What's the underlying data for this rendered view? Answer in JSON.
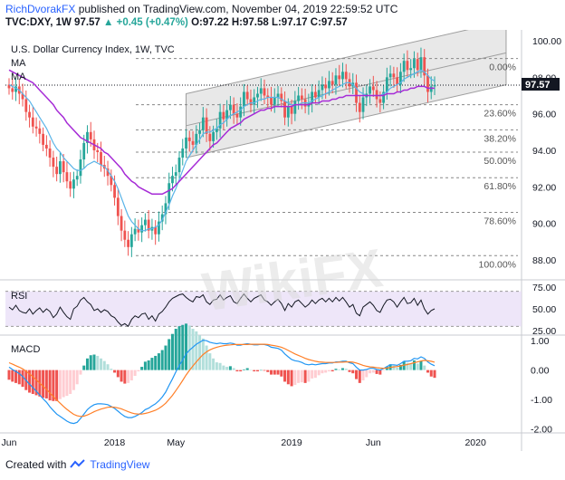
{
  "header": {
    "author": "RichDvorakFX",
    "published": "published on TradingView.com, November 04, 2019 22:59:52 UTC",
    "symbol_line": {
      "symbol": "TVC:DXY, 1W",
      "price": "97.57",
      "change": "▲ +0.45 (+0.47%)",
      "ohlc": "O:97.22 H:97.58 L:97.17 C:97.57"
    }
  },
  "panes": {
    "main_title": "U.S. Dollar Currency Index, 1W, TVC",
    "ma_label_1": "MA",
    "ma_label_2": "MA",
    "rsi_label": "RSI",
    "macd_label": "MACD",
    "price_badge": "97.57",
    "watermark": "WikiFX"
  },
  "footer": {
    "created_with": "Created with",
    "brand": "TradingView"
  },
  "colors": {
    "up": "#26a69a",
    "down": "#ef5350",
    "ma_fast": "#5ab4e8",
    "ma_slow": "#a62bd6",
    "rsi": "#131722",
    "rsi_band": "#e7dcf6",
    "macd": "#2196f3",
    "signal": "#ff7f27"
  },
  "chart_data": [
    {
      "type": "candlestick",
      "title": "U.S. Dollar Currency Index, 1W, TVC",
      "x_ticks": [
        "Jun",
        "2018",
        "May",
        "2019",
        "Jun",
        "2020"
      ],
      "x_tick_index": [
        0,
        31,
        49,
        83,
        107,
        137
      ],
      "y_ticks": [
        88.0,
        90.0,
        92.0,
        94.0,
        96.0,
        98.0,
        100.0
      ],
      "ylim": [
        87.4,
        100.2
      ],
      "last_price": 97.57,
      "fib_levels": [
        {
          "label": "0.00%",
          "value": 99.03
        },
        {
          "label": "23.60%",
          "value": 96.5
        },
        {
          "label": "38.20%",
          "value": 95.12
        },
        {
          "label": "50.00%",
          "value": 93.9
        },
        {
          "label": "61.80%",
          "value": 92.5
        },
        {
          "label": "78.60%",
          "value": 90.6
        },
        {
          "label": "100.00%",
          "value": 88.23
        }
      ],
      "closes": [
        97.4,
        97.2,
        97.5,
        97.1,
        96.8,
        96.1,
        95.8,
        95.3,
        95.2,
        94.9,
        94.3,
        94.1,
        93.6,
        93.1,
        92.7,
        93.4,
        92.8,
        92.3,
        91.9,
        92.4,
        92.6,
        93.5,
        94.4,
        95.0,
        94.6,
        94.0,
        93.9,
        93.2,
        93.0,
        92.6,
        92.1,
        91.4,
        90.4,
        89.6,
        89.1,
        88.7,
        89.4,
        89.7,
        89.5,
        89.9,
        90.2,
        89.6,
        89.8,
        89.4,
        90.1,
        90.5,
        91.1,
        92.2,
        92.6,
        92.8,
        93.6,
        94.1,
        94.7,
        94.5,
        94.3,
        94.9,
        95.1,
        95.8,
        94.9,
        94.5,
        95.0,
        95.2,
        96.1,
        95.7,
        96.2,
        96.5,
        96.0,
        95.8,
        96.4,
        97.2,
        96.8,
        96.5,
        96.9,
        97.1,
        97.4,
        97.0,
        96.9,
        96.5,
        96.9,
        97.1,
        96.7,
        95.8,
        96.4,
        96.0,
        96.7,
        97.0,
        96.8,
        96.4,
        96.6,
        97.2,
        96.9,
        97.3,
        97.6,
        97.4,
        97.8,
        97.6,
        98.1,
        97.9,
        98.3,
        97.9,
        97.5,
        97.7,
        96.6,
        96.1,
        96.9,
        97.1,
        97.5,
        97.3,
        96.8,
        96.6,
        97.2,
        98.0,
        98.2,
        98.0,
        97.6,
        98.3,
        98.9,
        98.4,
        98.5,
        99.0,
        98.4,
        99.1,
        98.1,
        97.2,
        97.5,
        97.57
      ],
      "ma_fast": [
        97.6,
        97.5,
        97.4,
        97.3,
        97.1,
        96.9,
        96.7,
        96.4,
        96.1,
        95.8,
        95.5,
        95.2,
        94.8,
        94.4,
        94.1,
        93.9,
        93.6,
        93.4,
        93.2,
        93.0,
        92.9,
        92.9,
        93.0,
        93.2,
        93.3,
        93.4,
        93.3,
        93.2,
        93.1,
        92.9,
        92.6,
        92.3,
        91.9,
        91.4,
        90.9,
        90.4,
        90.1,
        89.9,
        89.7,
        89.6,
        89.6,
        89.7,
        89.7,
        89.8,
        89.9,
        90.2,
        90.6,
        91.0,
        91.5,
        91.9,
        92.4,
        92.9,
        93.4,
        93.7,
        94.0,
        94.3,
        94.6,
        94.9,
        95.0,
        95.0,
        95.1,
        95.2,
        95.4,
        95.5,
        95.7,
        95.9,
        96.0,
        96.1,
        96.2,
        96.4,
        96.5,
        96.6,
        96.6,
        96.7,
        96.8,
        96.8,
        96.9,
        96.9,
        96.9,
        96.9,
        96.8,
        96.7,
        96.6,
        96.5,
        96.5,
        96.5,
        96.6,
        96.6,
        96.6,
        96.7,
        96.8,
        96.9,
        97.0,
        97.1,
        97.2,
        97.3,
        97.4,
        97.5,
        97.6,
        97.7,
        97.7,
        97.6,
        97.4,
        97.2,
        97.1,
        97.0,
        97.0,
        97.0,
        97.0,
        97.0,
        97.1,
        97.2,
        97.4,
        97.5,
        97.6,
        97.7,
        97.9,
        98.0,
        98.1,
        98.2,
        98.3,
        98.4,
        98.3,
        98.1,
        97.9,
        97.8
      ],
      "ma_slow": [
        98.4,
        98.3,
        98.2,
        98.1,
        98.0,
        97.9,
        97.8,
        97.7,
        97.5,
        97.3,
        97.1,
        96.9,
        96.7,
        96.5,
        96.2,
        96.0,
        95.8,
        95.5,
        95.3,
        95.1,
        94.9,
        94.7,
        94.6,
        94.5,
        94.4,
        94.3,
        94.2,
        94.1,
        93.9,
        93.8,
        93.6,
        93.4,
        93.2,
        93.0,
        92.7,
        92.5,
        92.3,
        92.2,
        92.0,
        91.9,
        91.8,
        91.7,
        91.6,
        91.6,
        91.6,
        91.6,
        91.7,
        91.8,
        91.9,
        92.1,
        92.3,
        92.5,
        92.7,
        92.9,
        93.1,
        93.3,
        93.5,
        93.7,
        93.9,
        94.1,
        94.3,
        94.4,
        94.6,
        94.8,
        95.0,
        95.2,
        95.3,
        95.4,
        95.5,
        95.7,
        95.8,
        95.9,
        96.0,
        96.1,
        96.2,
        96.2,
        96.3,
        96.3,
        96.4,
        96.4,
        96.4,
        96.4,
        96.4,
        96.4,
        96.5,
        96.5,
        96.5,
        96.5,
        96.5,
        96.6,
        96.6,
        96.6,
        96.7,
        96.7,
        96.7,
        96.8,
        96.8,
        96.9,
        96.9,
        97.0,
        97.0,
        97.0,
        97.0,
        97.0,
        97.0,
        97.0,
        97.0,
        97.0,
        97.0,
        97.0,
        97.0,
        97.1,
        97.1,
        97.1,
        97.2,
        97.2,
        97.3,
        97.3,
        97.4,
        97.4,
        97.5,
        97.5,
        97.5,
        97.4,
        97.4,
        97.4
      ]
    },
    {
      "type": "line",
      "title": "RSI",
      "y_ticks": [
        25.0,
        50.0,
        75.0
      ],
      "ylim": [
        20,
        80
      ],
      "band": [
        30,
        70
      ],
      "values": [
        52,
        49,
        54,
        48,
        46,
        45,
        50,
        44,
        48,
        51,
        46,
        50,
        47,
        40,
        44,
        52,
        46,
        41,
        38,
        50,
        53,
        60,
        63,
        58,
        55,
        48,
        50,
        46,
        49,
        47,
        42,
        40,
        35,
        31,
        33,
        30,
        38,
        42,
        40,
        44,
        45,
        38,
        42,
        36,
        44,
        47,
        52,
        58,
        62,
        64,
        66,
        67,
        63,
        60,
        58,
        64,
        63,
        66,
        58,
        55,
        60,
        61,
        66,
        60,
        63,
        65,
        58,
        56,
        62,
        67,
        62,
        58,
        62,
        64,
        66,
        60,
        58,
        54,
        58,
        61,
        56,
        48,
        56,
        52,
        58,
        60,
        56,
        52,
        55,
        60,
        56,
        60,
        62,
        58,
        62,
        58,
        63,
        59,
        63,
        58,
        52,
        55,
        45,
        42,
        52,
        55,
        58,
        54,
        48,
        46,
        54,
        60,
        61,
        58,
        52,
        58,
        63,
        56,
        57,
        62,
        54,
        60,
        50,
        44,
        48,
        50
      ]
    },
    {
      "type": "bar+line",
      "title": "MACD",
      "y_ticks": [
        -2.0,
        -1.0,
        0.0,
        1.0
      ],
      "ylim": [
        -2.05,
        1.1
      ],
      "macd": [
        0.1,
        0.02,
        -0.05,
        -0.12,
        -0.22,
        -0.35,
        -0.48,
        -0.6,
        -0.72,
        -0.85,
        -0.98,
        -1.1,
        -1.25,
        -1.38,
        -1.5,
        -1.58,
        -1.66,
        -1.74,
        -1.8,
        -1.82,
        -1.78,
        -1.65,
        -1.5,
        -1.35,
        -1.25,
        -1.18,
        -1.15,
        -1.15,
        -1.16,
        -1.18,
        -1.24,
        -1.31,
        -1.4,
        -1.5,
        -1.58,
        -1.62,
        -1.62,
        -1.58,
        -1.52,
        -1.45,
        -1.35,
        -1.3,
        -1.22,
        -1.15,
        -1.05,
        -0.92,
        -0.75,
        -0.52,
        -0.3,
        -0.06,
        0.15,
        0.35,
        0.55,
        0.68,
        0.78,
        0.88,
        0.95,
        1.02,
        1.0,
        0.95,
        0.92,
        0.9,
        0.92,
        0.9,
        0.9,
        0.92,
        0.9,
        0.85,
        0.85,
        0.88,
        0.9,
        0.88,
        0.86,
        0.86,
        0.88,
        0.87,
        0.84,
        0.78,
        0.76,
        0.74,
        0.68,
        0.55,
        0.45,
        0.36,
        0.32,
        0.3,
        0.26,
        0.2,
        0.18,
        0.2,
        0.18,
        0.2,
        0.22,
        0.22,
        0.24,
        0.24,
        0.28,
        0.28,
        0.3,
        0.3,
        0.25,
        0.22,
        0.1,
        0.0,
        0.0,
        0.02,
        0.06,
        0.06,
        0.02,
        0.0,
        0.05,
        0.12,
        0.18,
        0.18,
        0.16,
        0.22,
        0.3,
        0.3,
        0.32,
        0.4,
        0.38,
        0.45,
        0.4,
        0.28,
        0.2,
        0.15
      ],
      "signal": [
        0.25,
        0.2,
        0.15,
        0.1,
        0.04,
        -0.04,
        -0.13,
        -0.23,
        -0.33,
        -0.44,
        -0.55,
        -0.66,
        -0.78,
        -0.9,
        -1.02,
        -1.13,
        -1.24,
        -1.34,
        -1.43,
        -1.51,
        -1.56,
        -1.58,
        -1.57,
        -1.53,
        -1.48,
        -1.42,
        -1.37,
        -1.33,
        -1.3,
        -1.27,
        -1.26,
        -1.27,
        -1.29,
        -1.32,
        -1.37,
        -1.42,
        -1.46,
        -1.49,
        -1.5,
        -1.5,
        -1.48,
        -1.45,
        -1.41,
        -1.37,
        -1.31,
        -1.23,
        -1.13,
        -1.0,
        -0.86,
        -0.7,
        -0.53,
        -0.35,
        -0.17,
        -0.01,
        0.14,
        0.28,
        0.41,
        0.53,
        0.62,
        0.69,
        0.74,
        0.78,
        0.81,
        0.83,
        0.85,
        0.86,
        0.87,
        0.87,
        0.87,
        0.87,
        0.87,
        0.88,
        0.88,
        0.88,
        0.88,
        0.88,
        0.87,
        0.85,
        0.83,
        0.81,
        0.78,
        0.73,
        0.67,
        0.61,
        0.55,
        0.5,
        0.45,
        0.4,
        0.36,
        0.33,
        0.3,
        0.28,
        0.27,
        0.26,
        0.26,
        0.26,
        0.26,
        0.27,
        0.27,
        0.28,
        0.28,
        0.27,
        0.24,
        0.2,
        0.16,
        0.13,
        0.11,
        0.1,
        0.08,
        0.07,
        0.06,
        0.07,
        0.09,
        0.11,
        0.12,
        0.14,
        0.17,
        0.19,
        0.22,
        0.25,
        0.28,
        0.31,
        0.33,
        0.32,
        0.3,
        0.27
      ]
    }
  ]
}
